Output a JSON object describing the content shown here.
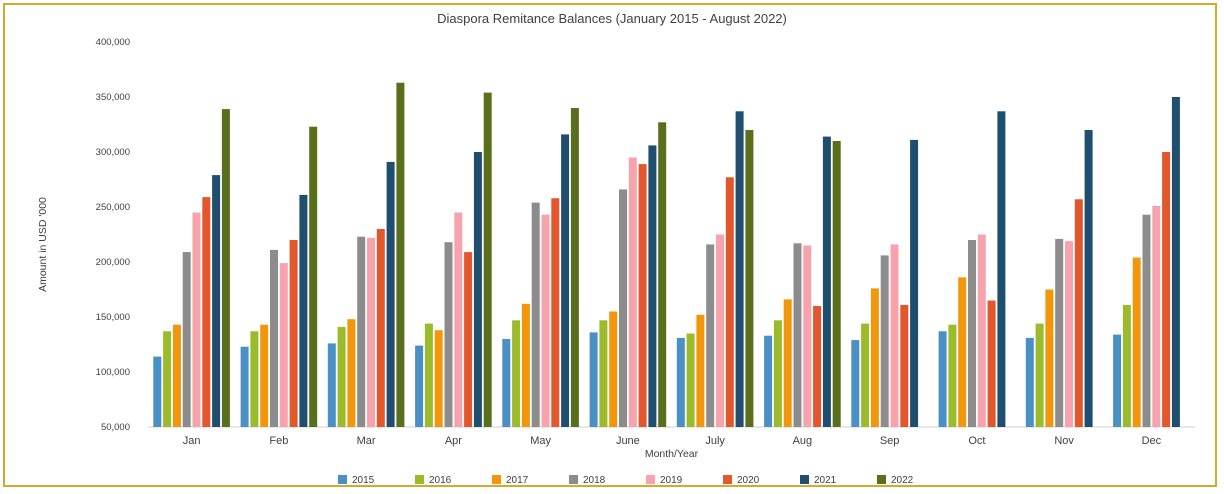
{
  "chart_data": {
    "type": "bar",
    "title": "Diaspora Remitance Balances (January 2015 - August 2022)",
    "xlabel": "Month/Year",
    "ylabel": "Amount in USD '000",
    "ylim": [
      50000,
      400000
    ],
    "yticks": [
      "400,000",
      "350,000",
      "300,000",
      "250,000",
      "200,000",
      "150,000",
      "100,000",
      "50,000"
    ],
    "ytick_values": [
      400000,
      350000,
      300000,
      250000,
      200000,
      150000,
      100000,
      50000
    ],
    "categories": [
      "Jan",
      "Feb",
      "Mar",
      "Apr",
      "May",
      "June",
      "July",
      "Aug",
      "Sep",
      "Oct",
      "Nov",
      "Dec"
    ],
    "grid": false,
    "legend_position": "bottom",
    "series": [
      {
        "name": "2015",
        "color": "#4a90c4",
        "values": [
          114000,
          123000,
          126000,
          124000,
          130000,
          136000,
          131000,
          133000,
          129000,
          137000,
          131000,
          134000
        ]
      },
      {
        "name": "2016",
        "color": "#9bbb2a",
        "values": [
          137000,
          137000,
          141000,
          144000,
          147000,
          147000,
          135000,
          147000,
          144000,
          143000,
          144000,
          161000
        ]
      },
      {
        "name": "2017",
        "color": "#f2960c",
        "values": [
          143000,
          143000,
          148000,
          138000,
          162000,
          155000,
          152000,
          166000,
          176000,
          186000,
          175000,
          204000
        ]
      },
      {
        "name": "2018",
        "color": "#8c8c8c",
        "values": [
          209000,
          211000,
          223000,
          218000,
          254000,
          266000,
          216000,
          217000,
          206000,
          220000,
          221000,
          243000
        ]
      },
      {
        "name": "2019",
        "color": "#f7a3ad",
        "values": [
          245000,
          199000,
          222000,
          245000,
          243000,
          295000,
          225000,
          215000,
          216000,
          225000,
          219000,
          251000
        ]
      },
      {
        "name": "2020",
        "color": "#e2582c",
        "values": [
          259000,
          220000,
          230000,
          209000,
          258000,
          289000,
          277000,
          160000,
          161000,
          165000,
          257000,
          300000
        ]
      },
      {
        "name": "2021",
        "color": "#1f4e6e",
        "values": [
          279000,
          261000,
          291000,
          300000,
          316000,
          306000,
          337000,
          314000,
          311000,
          337000,
          320000,
          350000
        ]
      },
      {
        "name": "2022",
        "color": "#5a6f1c",
        "values": [
          339000,
          323000,
          363000,
          354000,
          340000,
          327000,
          320000,
          310000,
          null,
          null,
          null,
          null
        ]
      }
    ]
  }
}
